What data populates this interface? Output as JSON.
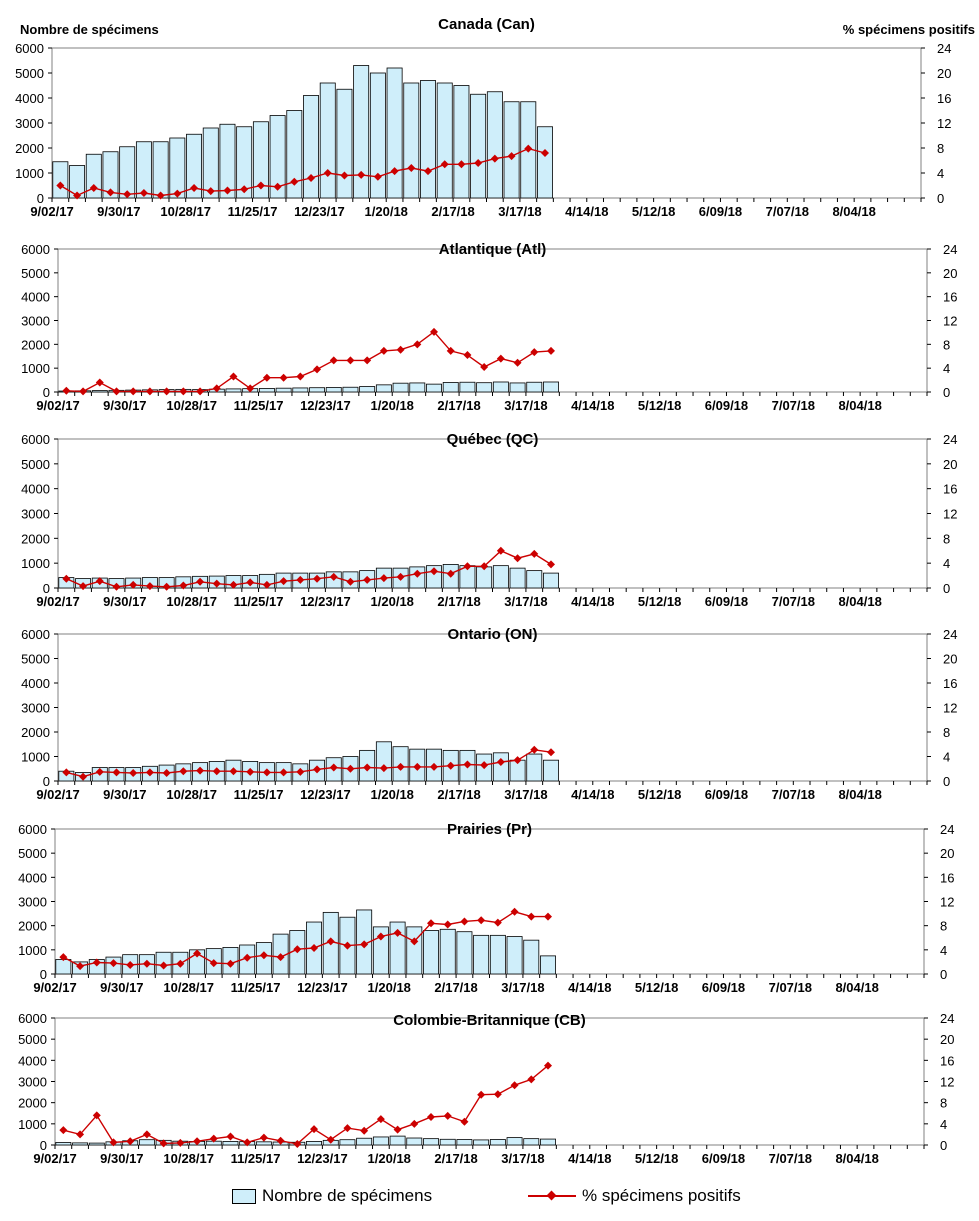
{
  "header": {
    "left_axis_title": "Nombre de spécimens",
    "right_axis_title": "% spécimens positifs"
  },
  "legend": {
    "bars_label": "Nombre de spécimens",
    "line_label": "% spécimens positifs"
  },
  "colors": {
    "bar_fill": "#cfeefa",
    "bar_stroke": "#000000",
    "line": "#cc0000"
  },
  "chart_data": [
    {
      "type": "bar",
      "title": "Canada (Can)",
      "x_tick_labels": [
        "9/02/17",
        "9/30/17",
        "10/28/17",
        "11/25/17",
        "12/23/17",
        "1/20/18",
        "2/17/18",
        "3/17/18",
        "4/14/18",
        "5/12/18",
        "6/09/18",
        "7/07/18",
        "8/04/18"
      ],
      "ylim": [
        0,
        6000
      ],
      "y2lim": [
        0,
        24
      ],
      "y_ticks": [
        0,
        1000,
        2000,
        3000,
        4000,
        5000,
        6000
      ],
      "y2_ticks": [
        0,
        4,
        8,
        12,
        16,
        20,
        24
      ],
      "n_weeks": 52,
      "series": [
        {
          "name": "Nombre de spécimens",
          "type": "bar",
          "axis": "left",
          "values": [
            1450,
            1300,
            1750,
            1850,
            2050,
            2250,
            2250,
            2400,
            2550,
            2800,
            2950,
            2850,
            3050,
            3300,
            3500,
            4100,
            4600,
            4350,
            5300,
            5000,
            5200,
            4600,
            4700,
            4600,
            4500,
            4150,
            4250,
            3850,
            3850,
            2850
          ]
        },
        {
          "name": "% spécimens positifs",
          "type": "line",
          "axis": "right",
          "values": [
            2.0,
            0.4,
            1.6,
            0.9,
            0.6,
            0.8,
            0.4,
            0.7,
            1.6,
            1.1,
            1.2,
            1.4,
            2.0,
            1.8,
            2.6,
            3.2,
            4.0,
            3.6,
            3.7,
            3.4,
            4.3,
            4.8,
            4.3,
            5.4,
            5.4,
            5.6,
            6.3,
            6.7,
            7.9,
            7.2
          ]
        }
      ]
    },
    {
      "type": "bar",
      "title": "Atlantique (Atl)",
      "x_tick_labels": [
        "9/02/17",
        "9/30/17",
        "10/28/17",
        "11/25/17",
        "12/23/17",
        "1/20/18",
        "2/17/18",
        "3/17/18",
        "4/14/18",
        "5/12/18",
        "6/09/18",
        "7/07/18",
        "8/04/18"
      ],
      "ylim": [
        0,
        6000
      ],
      "y2lim": [
        0,
        24
      ],
      "y_ticks": [
        0,
        1000,
        2000,
        3000,
        4000,
        5000,
        6000
      ],
      "y2_ticks": [
        0,
        4,
        8,
        12,
        16,
        20,
        24
      ],
      "n_weeks": 52,
      "series": [
        {
          "name": "Nombre de spécimens",
          "type": "bar",
          "axis": "left",
          "values": [
            40,
            50,
            60,
            70,
            80,
            90,
            100,
            110,
            100,
            120,
            130,
            140,
            150,
            160,
            170,
            180,
            190,
            200,
            230,
            300,
            370,
            380,
            330,
            400,
            410,
            390,
            420,
            380,
            410,
            420
          ]
        },
        {
          "name": "% spécimens positifs",
          "type": "line",
          "axis": "right",
          "values": [
            0.2,
            0.1,
            1.6,
            0.1,
            0.1,
            0.1,
            0.1,
            0.1,
            0.1,
            0.6,
            2.6,
            0.6,
            2.4,
            2.4,
            2.6,
            3.8,
            5.3,
            5.3,
            5.3,
            6.9,
            7.1,
            8.0,
            10.1,
            6.9,
            6.2,
            4.2,
            5.6,
            4.9,
            6.7,
            6.9
          ]
        }
      ]
    },
    {
      "type": "bar",
      "title": "Québec (QC)",
      "x_tick_labels": [
        "9/02/17",
        "9/30/17",
        "10/28/17",
        "11/25/17",
        "12/23/17",
        "1/20/18",
        "2/17/18",
        "3/17/18",
        "4/14/18",
        "5/12/18",
        "6/09/18",
        "7/07/18",
        "8/04/18"
      ],
      "ylim": [
        0,
        6000
      ],
      "y2lim": [
        0,
        24
      ],
      "y_ticks": [
        0,
        1000,
        2000,
        3000,
        4000,
        5000,
        6000
      ],
      "y2_ticks": [
        0,
        4,
        8,
        12,
        16,
        20,
        24
      ],
      "n_weeks": 52,
      "series": [
        {
          "name": "Nombre de spécimens",
          "type": "bar",
          "axis": "left",
          "values": [
            420,
            380,
            400,
            380,
            400,
            420,
            420,
            450,
            470,
            480,
            500,
            500,
            550,
            600,
            600,
            600,
            650,
            650,
            700,
            800,
            800,
            850,
            900,
            950,
            900,
            850,
            900,
            800,
            700,
            600
          ]
        },
        {
          "name": "% spécimens positifs",
          "type": "line",
          "axis": "right",
          "values": [
            1.5,
            0.3,
            1.1,
            0.2,
            0.5,
            0.3,
            0.2,
            0.4,
            1.0,
            0.7,
            0.5,
            0.9,
            0.5,
            1.1,
            1.3,
            1.5,
            1.8,
            1.0,
            1.3,
            1.6,
            1.8,
            2.3,
            2.7,
            2.3,
            3.5,
            3.5,
            6.0,
            4.8,
            5.5,
            3.8
          ]
        }
      ]
    },
    {
      "type": "bar",
      "title": "Ontario (ON)",
      "x_tick_labels": [
        "9/02/17",
        "9/30/17",
        "10/28/17",
        "11/25/17",
        "12/23/17",
        "1/20/18",
        "2/17/18",
        "3/17/18",
        "4/14/18",
        "5/12/18",
        "6/09/18",
        "7/07/18",
        "8/04/18"
      ],
      "ylim": [
        0,
        6000
      ],
      "y2lim": [
        0,
        24
      ],
      "y_ticks": [
        0,
        1000,
        2000,
        3000,
        4000,
        5000,
        6000
      ],
      "y2_ticks": [
        0,
        4,
        8,
        12,
        16,
        20,
        24
      ],
      "n_weeks": 52,
      "series": [
        {
          "name": "Nombre de spécimens",
          "type": "bar",
          "axis": "left",
          "values": [
            400,
            350,
            550,
            550,
            550,
            600,
            650,
            700,
            750,
            800,
            850,
            800,
            750,
            750,
            700,
            850,
            950,
            1000,
            1250,
            1600,
            1400,
            1300,
            1300,
            1250,
            1250,
            1100,
            1150,
            850,
            1100,
            850
          ]
        },
        {
          "name": "% spécimens positifs",
          "type": "line",
          "axis": "right",
          "values": [
            1.4,
            0.7,
            1.5,
            1.4,
            1.3,
            1.4,
            1.3,
            1.6,
            1.7,
            1.6,
            1.6,
            1.5,
            1.4,
            1.4,
            1.5,
            1.9,
            2.2,
            2.0,
            2.2,
            2.1,
            2.3,
            2.3,
            2.3,
            2.5,
            2.7,
            2.6,
            3.1,
            3.4,
            5.1,
            4.7
          ]
        }
      ]
    },
    {
      "type": "bar",
      "title": "Prairies (Pr)",
      "x_tick_labels": [
        "9/02/17",
        "9/30/17",
        "10/28/17",
        "11/25/17",
        "12/23/17",
        "1/20/18",
        "2/17/18",
        "3/17/18",
        "4/14/18",
        "5/12/18",
        "6/09/18",
        "7/07/18",
        "8/04/18"
      ],
      "ylim": [
        0,
        6000
      ],
      "y2lim": [
        0,
        24
      ],
      "y_ticks": [
        0,
        1000,
        2000,
        3000,
        4000,
        5000,
        6000
      ],
      "y2_ticks": [
        0,
        4,
        8,
        12,
        16,
        20,
        24
      ],
      "n_weeks": 52,
      "series": [
        {
          "name": "Nombre de spécimens",
          "type": "bar",
          "axis": "left",
          "values": [
            600,
            500,
            600,
            700,
            800,
            800,
            900,
            900,
            1000,
            1050,
            1100,
            1200,
            1300,
            1650,
            1800,
            2150,
            2550,
            2350,
            2650,
            1950,
            2150,
            1950,
            1800,
            1850,
            1750,
            1600,
            1600,
            1550,
            1400,
            750
          ]
        },
        {
          "name": "% spécimens positifs",
          "type": "line",
          "axis": "right",
          "values": [
            2.8,
            1.3,
            1.9,
            1.8,
            1.5,
            1.7,
            1.4,
            1.7,
            3.4,
            1.8,
            1.7,
            2.7,
            3.1,
            2.8,
            4.1,
            4.3,
            5.4,
            4.7,
            4.9,
            6.2,
            6.8,
            5.4,
            8.4,
            8.2,
            8.7,
            8.9,
            8.5,
            10.3,
            9.5,
            9.5
          ]
        }
      ]
    },
    {
      "type": "bar",
      "title": "Colombie-Britannique (CB)",
      "x_tick_labels": [
        "9/02/17",
        "9/30/17",
        "10/28/17",
        "11/25/17",
        "12/23/17",
        "1/20/18",
        "2/17/18",
        "3/17/18",
        "4/14/18",
        "5/12/18",
        "6/09/18",
        "7/07/18",
        "8/04/18"
      ],
      "ylim": [
        0,
        6000
      ],
      "y2lim": [
        0,
        24
      ],
      "y_ticks": [
        0,
        1000,
        2000,
        3000,
        4000,
        5000,
        6000
      ],
      "y2_ticks": [
        0,
        4,
        8,
        12,
        16,
        20,
        24
      ],
      "n_weeks": 52,
      "series": [
        {
          "name": "Nombre de spécimens",
          "type": "bar",
          "axis": "left",
          "values": [
            120,
            100,
            90,
            150,
            200,
            250,
            220,
            180,
            170,
            180,
            170,
            160,
            150,
            140,
            130,
            170,
            220,
            250,
            320,
            380,
            420,
            330,
            300,
            270,
            260,
            240,
            260,
            350,
            300,
            280
          ]
        },
        {
          "name": "% spécimens positifs",
          "type": "line",
          "axis": "right",
          "values": [
            2.8,
            2.0,
            5.6,
            0.5,
            0.7,
            2.0,
            0.3,
            0.4,
            0.7,
            1.2,
            1.6,
            0.5,
            1.4,
            0.8,
            0.2,
            3.0,
            1.0,
            3.2,
            2.7,
            4.9,
            2.9,
            4.0,
            5.3,
            5.5,
            4.4,
            9.5,
            9.6,
            11.3,
            12.4,
            15.0
          ]
        }
      ]
    }
  ]
}
